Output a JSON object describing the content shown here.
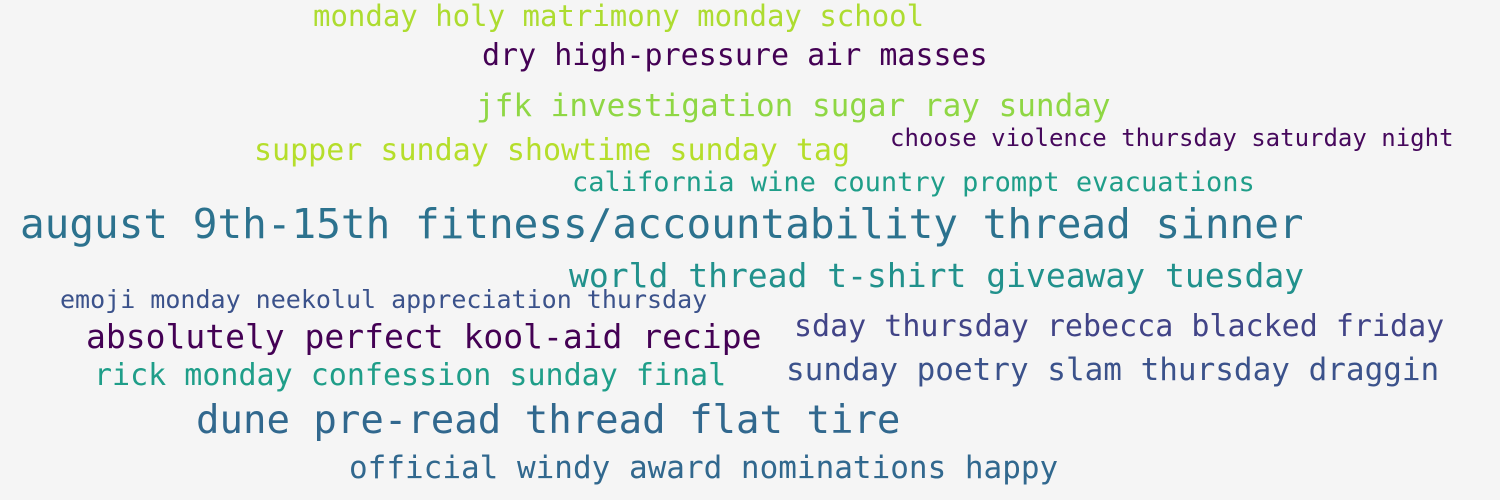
{
  "phrases": [
    {
      "text": "monday holy matrimony monday school",
      "color": "#addc30"
    },
    {
      "text": "dry high-pressure air masses",
      "color": "#440154"
    },
    {
      "text": "jfk investigation sugar ray sunday",
      "color": "#8fd744"
    },
    {
      "text": "supper sunday showtime sunday tag",
      "color": "#b5de2b"
    },
    {
      "text": "choose violence thursday saturday night",
      "color": "#46085c"
    },
    {
      "text": "california wine country prompt evacuations",
      "color": "#1f9e89"
    },
    {
      "text": "august 9th-15th fitness/accountability thread sinner",
      "color": "#2c728e"
    },
    {
      "text": "world thread t-shirt giveaway tuesday",
      "color": "#21918c"
    },
    {
      "text": "emoji monday neekolul appreciation thursday",
      "color": "#3b528b"
    },
    {
      "text": "absolutely perfect kool-aid recipe",
      "color": "#440154"
    },
    {
      "text": "sday thursday rebecca blacked friday",
      "color": "#414487"
    },
    {
      "text": "rick monday confession sunday final",
      "color": "#1f9e89"
    },
    {
      "text": "sunday poetry slam thursday draggin",
      "color": "#3b528b"
    },
    {
      "text": "dune pre-read thread flat tire",
      "color": "#31688e"
    },
    {
      "text": "official windy award nominations happy",
      "color": "#31688e"
    }
  ]
}
